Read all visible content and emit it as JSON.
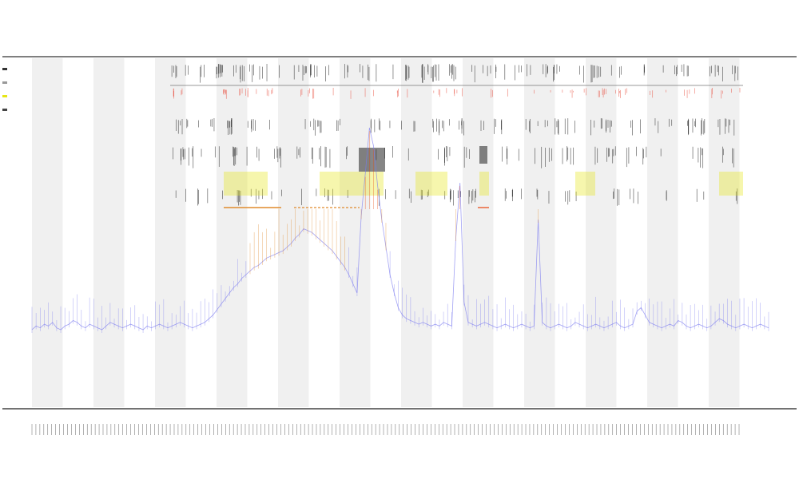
{
  "chart_data": {
    "type": "line",
    "title": "",
    "subtitle_lines": [
      "",
      ""
    ],
    "xlabel": "",
    "ylabel": "",
    "colors": {
      "low": "#7b7bef",
      "mid": "#e08a2c",
      "high": "#e8440c",
      "bar_band": "#f0f0f0",
      "yellow_band": "#e6e615",
      "red_ticks": "#e84a3a",
      "black_ticks": "#111111"
    },
    "series": [
      {
        "values": [
          10,
          12,
          11,
          13,
          12,
          14,
          11,
          10,
          12,
          13,
          15,
          14,
          12,
          11,
          13,
          12,
          11,
          10,
          12,
          14,
          13,
          12,
          11,
          12,
          13,
          12,
          11,
          10,
          12,
          11,
          12,
          13,
          12,
          11,
          12,
          13,
          14,
          13,
          12,
          11,
          12,
          13,
          14,
          16,
          18,
          21,
          24,
          27,
          30,
          33,
          35,
          38,
          40,
          42,
          44,
          45,
          47,
          49,
          50,
          51,
          52,
          53,
          55,
          57,
          60,
          62,
          65,
          64,
          63,
          61,
          59,
          57,
          55,
          53,
          50,
          47,
          44,
          40,
          35,
          30,
          72,
          95,
          120,
          110,
          88,
          70,
          55,
          40,
          30,
          22,
          18,
          16,
          15,
          14,
          13,
          14,
          13,
          12,
          13,
          12,
          14,
          13,
          12,
          60,
          90,
          25,
          14,
          13,
          12,
          13,
          14,
          13,
          12,
          11,
          12,
          13,
          12,
          11,
          12,
          13,
          12,
          11,
          12,
          70,
          14,
          12,
          11,
          12,
          13,
          12,
          11,
          12,
          14,
          13,
          12,
          11,
          12,
          13,
          12,
          11,
          12,
          13,
          14,
          12,
          11,
          12,
          13,
          20,
          22,
          18,
          14,
          13,
          12,
          11,
          12,
          13,
          12,
          15,
          14,
          12,
          11,
          12,
          13,
          12,
          11,
          12,
          14,
          16,
          15,
          13,
          12,
          11,
          12,
          13,
          12,
          11,
          12,
          13,
          12,
          11
        ]
      }
    ],
    "categories_count": 180
  }
}
